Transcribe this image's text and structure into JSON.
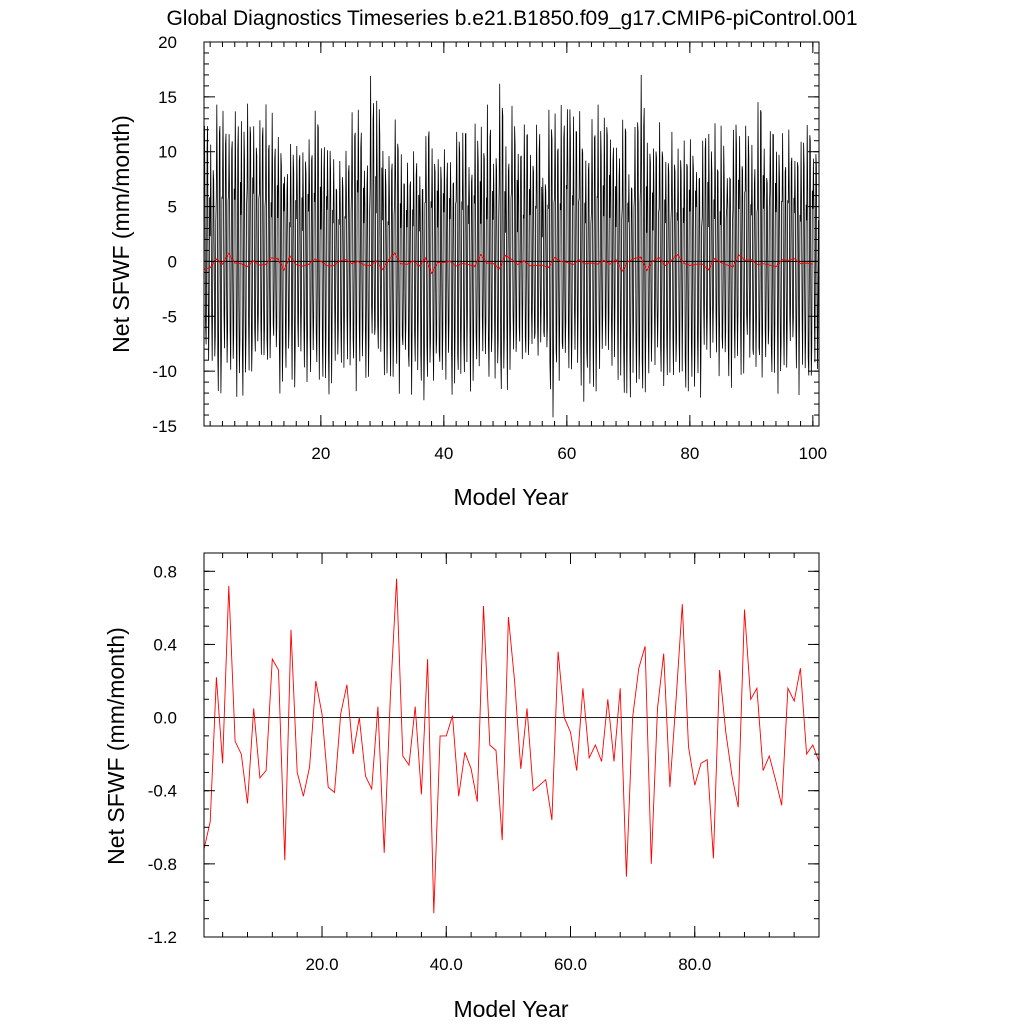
{
  "title": "Global Diagnostics Timeseries b.e21.B1850.f09_g17.CMIP6-piControl.001",
  "chart_data": [
    {
      "type": "line",
      "xlabel": "Model Year",
      "ylabel": "Net SFWF (mm/month)",
      "xlim": [
        1,
        101
      ],
      "ylim": [
        -15,
        20
      ],
      "xticks": [
        20,
        40,
        60,
        80,
        100
      ],
      "xtick_labels": [
        "20",
        "40",
        "60",
        "80",
        "100"
      ],
      "yticks": [
        -15,
        -10,
        -5,
        0,
        5,
        10,
        15,
        20
      ],
      "ytick_labels": [
        "-15",
        "-10",
        "-5",
        "0",
        "5",
        "10",
        "15",
        "20"
      ],
      "reference_line": 0,
      "series": [
        {
          "color": "#000000",
          "kind": "monthly",
          "amplitude_max": [
            12.5,
            15.5,
            17.0
          ],
          "amplitude_min": [
            -10.0,
            -12.5,
            -14.0
          ]
        },
        {
          "color": "#ff0000",
          "kind": "annual"
        }
      ]
    },
    {
      "type": "line",
      "xlabel": "Model Year",
      "ylabel": "Net SFWF (mm/month)",
      "xlim": [
        1,
        100
      ],
      "ylim": [
        -1.2,
        0.9
      ],
      "xticks": [
        20,
        40,
        60,
        80
      ],
      "xtick_labels": [
        "20.0",
        "40.0",
        "60.0",
        "80.0"
      ],
      "yticks": [
        -1.2,
        -0.8,
        -0.4,
        0.0,
        0.4,
        0.8
      ],
      "ytick_labels": [
        "-1.2",
        "-0.8",
        "-0.4",
        "0.0",
        "0.4",
        "0.8"
      ],
      "reference_line": 0,
      "series": [
        {
          "color": "#ff0000",
          "x": [
            1,
            2,
            3,
            4,
            5,
            6,
            7,
            8,
            9,
            10,
            11,
            12,
            13,
            14,
            15,
            16,
            17,
            18,
            19,
            20,
            21,
            22,
            23,
            24,
            25,
            26,
            27,
            28,
            29,
            30,
            31,
            32,
            33,
            34,
            35,
            36,
            37,
            38,
            39,
            40,
            41,
            42,
            43,
            44,
            45,
            46,
            47,
            48,
            49,
            50,
            51,
            52,
            53,
            54,
            55,
            56,
            57,
            58,
            59,
            60,
            61,
            62,
            63,
            64,
            65,
            66,
            67,
            68,
            69,
            70,
            71,
            72,
            73,
            74,
            75,
            76,
            77,
            78,
            79,
            80,
            81,
            82,
            83,
            84,
            85,
            86,
            87,
            88,
            89,
            90,
            91,
            92,
            93,
            94,
            95,
            96,
            97,
            98,
            99,
            100
          ],
          "y": [
            -0.72,
            -0.57,
            0.22,
            -0.25,
            0.72,
            -0.13,
            -0.2,
            -0.47,
            0.05,
            -0.33,
            -0.29,
            0.32,
            0.26,
            -0.78,
            0.48,
            -0.3,
            -0.43,
            -0.27,
            0.2,
            0.02,
            -0.38,
            -0.41,
            0.02,
            0.18,
            -0.2,
            0.0,
            -0.32,
            -0.39,
            0.06,
            -0.74,
            0.12,
            0.76,
            -0.21,
            -0.26,
            0.06,
            -0.42,
            0.32,
            -1.07,
            -0.1,
            -0.1,
            0.01,
            -0.43,
            -0.19,
            -0.28,
            -0.46,
            0.61,
            -0.15,
            -0.18,
            -0.67,
            0.55,
            0.2,
            -0.28,
            0.05,
            -0.4,
            -0.37,
            -0.34,
            -0.56,
            0.36,
            0.0,
            -0.08,
            -0.29,
            0.16,
            -0.22,
            -0.15,
            -0.24,
            0.1,
            -0.24,
            0.16,
            -0.87,
            0.0,
            0.27,
            0.39,
            -0.8,
            0.05,
            0.35,
            -0.38,
            0.1,
            0.62,
            -0.16,
            -0.37,
            -0.25,
            -0.23,
            -0.77,
            0.26,
            -0.08,
            -0.32,
            -0.49,
            0.59,
            0.1,
            0.16,
            -0.29,
            -0.21,
            -0.34,
            -0.48,
            0.16,
            0.09,
            0.27,
            -0.2,
            -0.15,
            -0.24
          ]
        }
      ]
    }
  ]
}
